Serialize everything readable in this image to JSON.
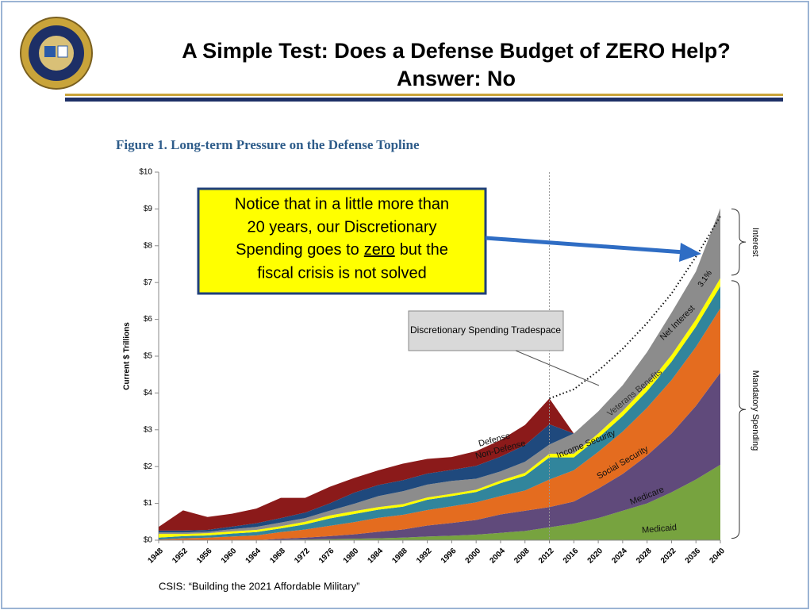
{
  "slide": {
    "title": "A Simple Test:  Does a Defense Budget of ZERO Help?",
    "subtitle": "Answer:  No",
    "source": "CSIS: “Building the 2021 Affordable Military”"
  },
  "chart_data": {
    "type": "stacked-area",
    "title": "Figure 1.  Long-term Pressure on the Defense Topline",
    "y_label": "Current $ Trillions",
    "x": [
      1948,
      1952,
      1956,
      1960,
      1964,
      1968,
      1972,
      1976,
      1980,
      1984,
      1988,
      1992,
      1996,
      2000,
      2004,
      2008,
      2012,
      2016,
      2020,
      2024,
      2028,
      2032,
      2036,
      2040
    ],
    "xlim": [
      1948,
      2040
    ],
    "xticks": [
      1948,
      1952,
      1956,
      1960,
      1964,
      1968,
      1972,
      1976,
      1980,
      1984,
      1988,
      1992,
      1996,
      2000,
      2004,
      2008,
      2012,
      2016,
      2020,
      2024,
      2028,
      2032,
      2036,
      2040
    ],
    "ylim": [
      0,
      10
    ],
    "yticks": [
      {
        "value": 0,
        "label": "$0"
      },
      {
        "value": 1,
        "label": "$1"
      },
      {
        "value": 2,
        "label": "$2"
      },
      {
        "value": 3,
        "label": "$3"
      },
      {
        "value": 4,
        "label": "$4"
      },
      {
        "value": 5,
        "label": "$5"
      },
      {
        "value": 6,
        "label": "$6"
      },
      {
        "value": 7,
        "label": "$7"
      },
      {
        "value": 8,
        "label": "$8"
      },
      {
        "value": 9,
        "label": "$9"
      },
      {
        "value": 10,
        "label": "$10"
      }
    ],
    "series": [
      {
        "name": "Medicaid",
        "color": "#77a33f",
        "values": [
          0,
          0,
          0,
          0,
          0,
          0.01,
          0.02,
          0.03,
          0.04,
          0.05,
          0.07,
          0.1,
          0.12,
          0.15,
          0.2,
          0.25,
          0.35,
          0.45,
          0.6,
          0.8,
          1.0,
          1.3,
          1.65,
          2.05
        ]
      },
      {
        "name": "Medicare",
        "color": "#604a7b",
        "values": [
          0,
          0,
          0,
          0,
          0,
          0.03,
          0.05,
          0.08,
          0.12,
          0.18,
          0.22,
          0.3,
          0.35,
          0.4,
          0.5,
          0.55,
          0.55,
          0.6,
          0.8,
          1.0,
          1.3,
          1.6,
          2.0,
          2.5
        ]
      },
      {
        "name": "Social Security",
        "color": "#e46c1f",
        "values": [
          0.02,
          0.05,
          0.07,
          0.1,
          0.13,
          0.18,
          0.22,
          0.28,
          0.33,
          0.38,
          0.4,
          0.42,
          0.45,
          0.48,
          0.5,
          0.55,
          0.75,
          0.85,
          1.0,
          1.15,
          1.3,
          1.45,
          1.6,
          1.75
        ]
      },
      {
        "name": "Income Security",
        "color": "#31859c",
        "values": [
          0.05,
          0.06,
          0.06,
          0.08,
          0.09,
          0.1,
          0.14,
          0.2,
          0.22,
          0.22,
          0.22,
          0.28,
          0.28,
          0.28,
          0.35,
          0.4,
          0.6,
          0.35,
          0.38,
          0.42,
          0.45,
          0.5,
          0.55,
          0.6
        ]
      },
      {
        "name": "Veterans Benefits",
        "color": "#ffff00",
        "values": [
          0.1,
          0.06,
          0.06,
          0.06,
          0.06,
          0.06,
          0.07,
          0.08,
          0.08,
          0.07,
          0.07,
          0.06,
          0.06,
          0.06,
          0.07,
          0.08,
          0.1,
          0.1,
          0.12,
          0.14,
          0.16,
          0.18,
          0.2,
          0.22
        ]
      },
      {
        "name": "Net Interest",
        "color": "#8c8c8c",
        "values": [
          0.04,
          0.04,
          0.04,
          0.06,
          0.08,
          0.1,
          0.1,
          0.13,
          0.2,
          0.3,
          0.35,
          0.35,
          0.35,
          0.3,
          0.25,
          0.3,
          0.25,
          0.55,
          0.6,
          0.7,
          0.9,
          1.15,
          1.3,
          1.9
        ]
      },
      {
        "name": "Non-Defense",
        "color": "#1f497d",
        "values": [
          0.05,
          0.05,
          0.05,
          0.07,
          0.1,
          0.12,
          0.15,
          0.2,
          0.3,
          0.3,
          0.3,
          0.3,
          0.3,
          0.35,
          0.4,
          0.45,
          0.55,
          0,
          0,
          0,
          0,
          0,
          0,
          0
        ]
      },
      {
        "name": "Defense",
        "color": "#8b1a1a",
        "values": [
          0.1,
          0.55,
          0.35,
          0.35,
          0.4,
          0.55,
          0.4,
          0.45,
          0.4,
          0.4,
          0.45,
          0.4,
          0.35,
          0.4,
          0.45,
          0.55,
          0.7,
          0,
          0,
          0,
          0,
          0,
          0,
          0
        ]
      }
    ],
    "reference_line": {
      "x": [
        2012,
        2016,
        2020,
        2024,
        2028,
        2032,
        2036,
        2040
      ],
      "values": [
        3.85,
        4.1,
        4.6,
        5.2,
        5.9,
        6.7,
        7.7,
        8.8
      ]
    },
    "divider_x": 2012,
    "annotations": {
      "tradespace": "Discretionary Spending Tradespace",
      "rate": "3.1%",
      "interest": "Interest",
      "mandatory": "Mandatory Spending"
    },
    "callout": {
      "line1": "Notice that in a little more than",
      "line2": "20 years, our Discretionary",
      "line3": {
        "before": "Spending goes to",
        "underlined": "zero",
        "after": "but the"
      },
      "line4": "fiscal crisis is not solved"
    }
  }
}
